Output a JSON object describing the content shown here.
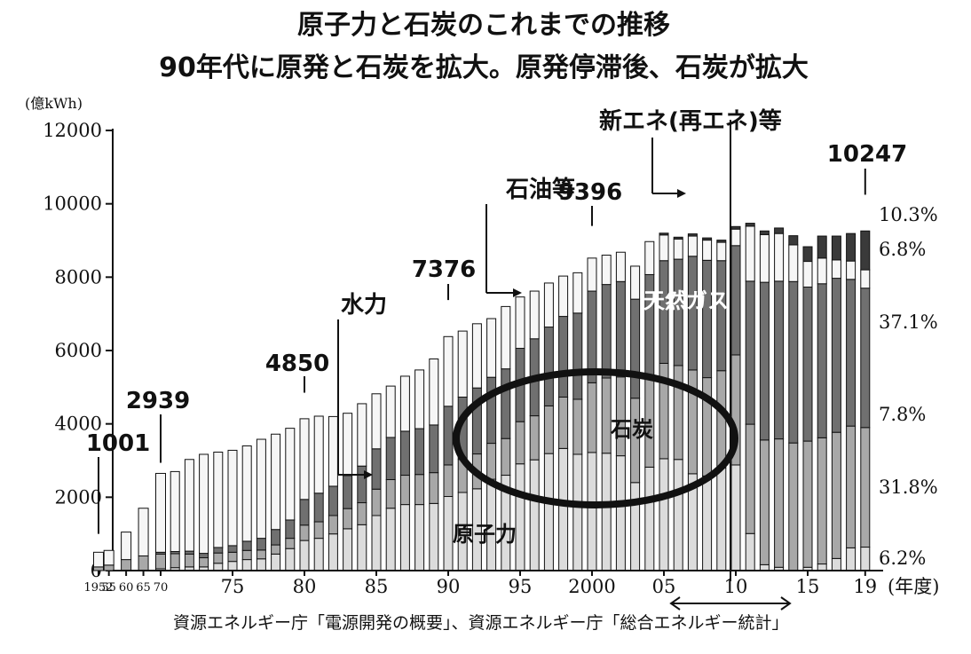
{
  "chart_data": {
    "type": "bar",
    "stacked": true,
    "title": "原子力と石炭のこれまでの推移",
    "subtitle": "90年代に原発と石炭を拡大。原発停滞後、石炭が拡大",
    "ylabel": "(億kWh)",
    "xlabel": "(年度)",
    "ylim": [
      0,
      12000
    ],
    "yticks": [
      0,
      2000,
      4000,
      6000,
      8000,
      10000,
      12000
    ],
    "xtick_labels": [
      {
        "year": 1952,
        "label": "1952"
      },
      {
        "year": 1955,
        "label": "55"
      },
      {
        "year": 1960,
        "label": "60"
      },
      {
        "year": 1965,
        "label": "65"
      },
      {
        "year": 1970,
        "label": "70"
      },
      {
        "year": 1975,
        "label": "75"
      },
      {
        "year": 1980,
        "label": "80"
      },
      {
        "year": 1985,
        "label": "85"
      },
      {
        "year": 1990,
        "label": "90"
      },
      {
        "year": 1995,
        "label": "95"
      },
      {
        "year": 2000,
        "label": "2000"
      },
      {
        "year": 2005,
        "label": "05"
      },
      {
        "year": 2010,
        "label": "10"
      },
      {
        "year": 2015,
        "label": "15"
      },
      {
        "year": 2019,
        "label": "19"
      }
    ],
    "years": [
      1952,
      1955,
      1960,
      1965,
      1970,
      1971,
      1972,
      1973,
      1974,
      1975,
      1976,
      1977,
      1978,
      1979,
      1980,
      1981,
      1982,
      1983,
      1984,
      1985,
      1986,
      1987,
      1988,
      1989,
      1990,
      1991,
      1992,
      1993,
      1994,
      1995,
      1996,
      1997,
      1998,
      1999,
      2000,
      2001,
      2002,
      2003,
      2004,
      2005,
      2006,
      2007,
      2008,
      2009,
      2010,
      2011,
      2012,
      2013,
      2014,
      2015,
      2016,
      2017,
      2018,
      2019
    ],
    "series": [
      {
        "name": "原子力",
        "color": "#dcdcdc",
        "values": [
          0,
          0,
          0,
          0,
          50,
          80,
          100,
          100,
          200,
          250,
          300,
          320,
          450,
          600,
          820,
          880,
          1000,
          1140,
          1250,
          1500,
          1700,
          1800,
          1800,
          1830,
          2020,
          2130,
          2230,
          2490,
          2600,
          2910,
          3020,
          3190,
          3330,
          3170,
          3220,
          3200,
          3130,
          2400,
          2820,
          3050,
          3030,
          2640,
          2580,
          2800,
          2880,
          1010,
          160,
          90,
          0,
          90,
          180,
          330,
          620,
          640
        ]
      },
      {
        "name": "石炭",
        "color": "#a8a8a8",
        "values": [
          100,
          150,
          300,
          400,
          400,
          380,
          350,
          250,
          280,
          250,
          250,
          240,
          250,
          280,
          420,
          450,
          500,
          550,
          600,
          720,
          780,
          800,
          820,
          840,
          860,
          900,
          950,
          980,
          1000,
          1150,
          1200,
          1300,
          1400,
          1500,
          1900,
          2050,
          2150,
          2300,
          2500,
          2600,
          2560,
          2830,
          2680,
          2650,
          3000,
          2980,
          3400,
          3500,
          3480,
          3440,
          3440,
          3440,
          3320,
          3260
        ]
      },
      {
        "name": "水力",
        "color": "#e8e8e8",
        "values": [
          0,
          0,
          0,
          0,
          0,
          0,
          0,
          0,
          0,
          0,
          0,
          0,
          0,
          0,
          0,
          0,
          0,
          0,
          0,
          0,
          0,
          0,
          0,
          0,
          0,
          0,
          0,
          0,
          0,
          0,
          0,
          0,
          0,
          0,
          0,
          0,
          0,
          0,
          0,
          0,
          0,
          0,
          0,
          0,
          0,
          0,
          0,
          0,
          0,
          0,
          0,
          0,
          0,
          0
        ]
      },
      {
        "name": "天然ガス",
        "color": "#707070",
        "values": [
          0,
          0,
          0,
          0,
          50,
          60,
          80,
          120,
          150,
          180,
          250,
          320,
          420,
          500,
          700,
          780,
          800,
          900,
          1000,
          1100,
          1150,
          1200,
          1250,
          1300,
          1600,
          1700,
          1800,
          1800,
          1900,
          2000,
          2100,
          2150,
          2200,
          2350,
          2500,
          2550,
          2600,
          2700,
          2750,
          2800,
          2900,
          3100,
          3200,
          3000,
          2980,
          3900,
          4300,
          4300,
          4400,
          4200,
          4200,
          4200,
          4000,
          3800
        ]
      },
      {
        "name": "石油等",
        "color": "#f6f6f6",
        "values": [
          400,
          400,
          750,
          1300,
          2150,
          2180,
          2500,
          2700,
          2600,
          2600,
          2600,
          2700,
          2600,
          2500,
          2200,
          2100,
          1900,
          1700,
          1700,
          1500,
          1400,
          1500,
          1600,
          1800,
          1900,
          1800,
          1750,
          1600,
          1700,
          1400,
          1300,
          1200,
          1100,
          1100,
          900,
          800,
          800,
          900,
          900,
          700,
          550,
          550,
          550,
          500,
          450,
          1500,
          1300,
          1300,
          1000,
          700,
          700,
          500,
          500,
          500
        ]
      },
      {
        "name": "新エネ(再エネ)等",
        "color": "#3a3a3a",
        "values": [
          0,
          0,
          0,
          0,
          0,
          0,
          0,
          0,
          0,
          0,
          0,
          0,
          0,
          0,
          0,
          0,
          0,
          0,
          0,
          0,
          0,
          0,
          0,
          0,
          0,
          0,
          0,
          0,
          0,
          0,
          0,
          0,
          0,
          0,
          0,
          0,
          0,
          0,
          0,
          50,
          50,
          60,
          60,
          60,
          70,
          80,
          100,
          150,
          250,
          400,
          600,
          650,
          750,
          1060
        ]
      }
    ],
    "annotations": [
      {
        "year": 1952,
        "value": 1001,
        "label": "1001"
      },
      {
        "year": 1970,
        "value": 2939,
        "label": "2939"
      },
      {
        "year": 1980,
        "value": 4850,
        "label": "4850"
      },
      {
        "year": 1990,
        "value": 7376,
        "label": "7376"
      },
      {
        "year": 2000,
        "value": 9396,
        "label": "9396"
      },
      {
        "year": 2019,
        "value": 10247,
        "label": "10247"
      }
    ],
    "labels": {
      "hydro": "水力",
      "oil": "石油等",
      "renewable": "新エネ(再エネ)等",
      "gas": "天然ガス",
      "coal": "石炭",
      "nuclear": "原子力"
    },
    "shares_2019": [
      "10.3%",
      "6.8%",
      "37.1%",
      "7.8%",
      "31.8%",
      "6.2%"
    ],
    "source": "資源エネルギー庁「電源開発の概要」、資源エネルギー庁「総合エネルギー統計」"
  }
}
